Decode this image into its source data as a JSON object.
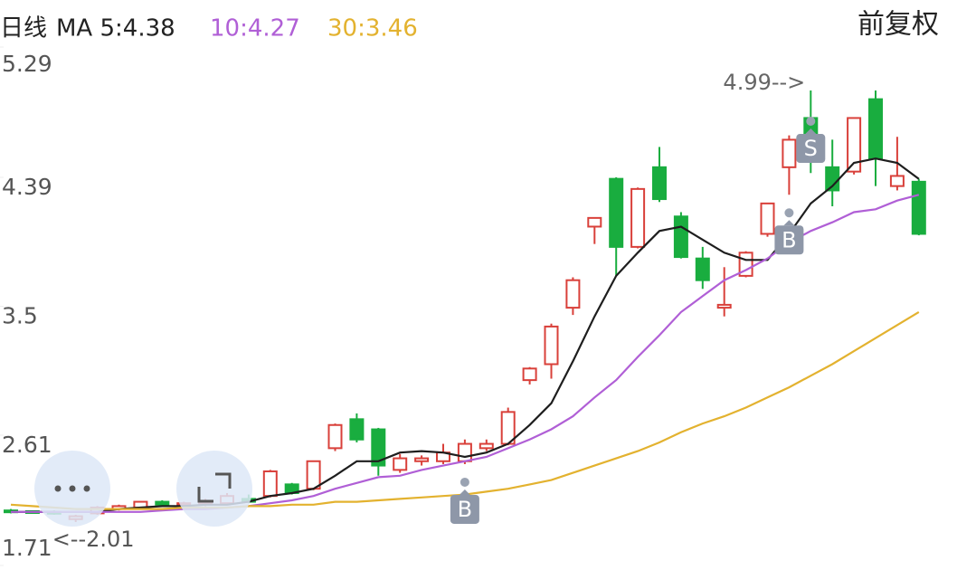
{
  "chart_data": {
    "type": "candlestick",
    "period": "日线",
    "right_label": "前复权",
    "open": [
      2.09,
      2.085,
      2.08,
      2.03,
      2.07,
      2.1,
      2.11,
      2.15,
      2.13,
      2.14,
      2.14,
      2.17,
      2.19,
      2.27,
      2.24,
      2.52,
      2.72,
      2.65,
      2.37,
      2.43,
      2.43,
      2.43,
      2.52,
      2.55,
      2.99,
      3.1,
      3.49,
      4.05,
      4.38,
      3.91,
      4.46,
      4.12,
      3.83,
      3.49,
      3.71,
      4.0,
      4.46,
      4.8,
      4.46,
      4.43,
      4.93,
      4.33,
      4.36
    ],
    "high": [
      2.1,
      2.09,
      2.09,
      2.06,
      2.12,
      2.13,
      2.15,
      2.16,
      2.15,
      2.17,
      2.21,
      2.2,
      2.37,
      2.28,
      2.43,
      2.69,
      2.76,
      2.66,
      2.48,
      2.47,
      2.55,
      2.58,
      2.58,
      2.8,
      3.08,
      3.38,
      3.7,
      4.11,
      4.39,
      4.32,
      4.6,
      4.15,
      3.91,
      3.77,
      3.88,
      4.21,
      4.68,
      4.99,
      4.65,
      4.8,
      4.99,
      4.67,
      4.38
    ],
    "low": [
      2.07,
      2.07,
      2.06,
      2.01,
      2.06,
      2.09,
      2.1,
      2.12,
      2.12,
      2.12,
      2.13,
      2.14,
      2.18,
      2.2,
      2.23,
      2.5,
      2.56,
      2.33,
      2.35,
      2.4,
      2.41,
      2.41,
      2.5,
      2.54,
      2.96,
      3.0,
      3.44,
      3.93,
      3.71,
      3.9,
      4.22,
      3.83,
      3.62,
      3.43,
      3.7,
      3.98,
      4.27,
      4.42,
      4.19,
      4.41,
      4.33,
      4.3,
      3.99
    ],
    "close": [
      2.08,
      2.075,
      2.07,
      2.05,
      2.11,
      2.12,
      2.15,
      2.13,
      2.14,
      2.15,
      2.19,
      2.15,
      2.36,
      2.21,
      2.43,
      2.68,
      2.58,
      2.4,
      2.45,
      2.45,
      2.49,
      2.55,
      2.55,
      2.77,
      3.07,
      3.36,
      3.68,
      4.11,
      3.91,
      4.31,
      4.24,
      3.84,
      3.68,
      3.51,
      3.87,
      4.21,
      4.65,
      4.55,
      4.3,
      4.8,
      4.52,
      4.4,
      4.0
    ],
    "up_color": "#d9403a",
    "down_color": "#19ad3f",
    "series": [
      {
        "name": "MA 5:4.38",
        "color": "#1e1e1e",
        "values": [
          2.08,
          2.08,
          2.08,
          2.08,
          2.08,
          2.1,
          2.11,
          2.12,
          2.12,
          2.13,
          2.13,
          2.15,
          2.19,
          2.21,
          2.24,
          2.33,
          2.43,
          2.43,
          2.49,
          2.5,
          2.49,
          2.46,
          2.49,
          2.55,
          2.68,
          2.83,
          3.12,
          3.43,
          3.71,
          3.87,
          4.02,
          4.05,
          3.96,
          3.87,
          3.82,
          3.82,
          4.0,
          4.21,
          4.33,
          4.49,
          4.52,
          4.49,
          4.38
        ]
      },
      {
        "name": "10:4.27",
        "color": "#b05fd6",
        "values": [
          2.08,
          2.08,
          2.08,
          2.08,
          2.08,
          2.08,
          2.08,
          2.09,
          2.1,
          2.1,
          2.11,
          2.12,
          2.14,
          2.16,
          2.19,
          2.24,
          2.28,
          2.32,
          2.33,
          2.37,
          2.4,
          2.43,
          2.46,
          2.52,
          2.58,
          2.65,
          2.74,
          2.87,
          2.99,
          3.15,
          3.3,
          3.46,
          3.57,
          3.68,
          3.75,
          3.83,
          3.94,
          4.02,
          4.08,
          4.15,
          4.17,
          4.23,
          4.27
        ]
      },
      {
        "name": "30:3.46",
        "color": "#e3b22f",
        "values": [
          2.13,
          2.12,
          2.11,
          2.1,
          2.1,
          2.1,
          2.1,
          2.1,
          2.11,
          2.11,
          2.11,
          2.12,
          2.12,
          2.13,
          2.13,
          2.15,
          2.15,
          2.16,
          2.17,
          2.18,
          2.19,
          2.2,
          2.22,
          2.24,
          2.27,
          2.3,
          2.35,
          2.4,
          2.45,
          2.5,
          2.56,
          2.63,
          2.69,
          2.74,
          2.8,
          2.87,
          2.94,
          3.02,
          3.1,
          3.19,
          3.28,
          3.37,
          3.46
        ]
      }
    ],
    "high_label": "4.99-->",
    "low_label": "<--2.01",
    "signals": [
      {
        "label": "B",
        "index": 21
      },
      {
        "label": "B",
        "index": 36
      },
      {
        "label": "S",
        "index": 37
      }
    ],
    "ylim": [
      1.71,
      5.29
    ],
    "yticks": [
      5.29,
      4.39,
      3.5,
      2.61,
      1.71
    ]
  }
}
